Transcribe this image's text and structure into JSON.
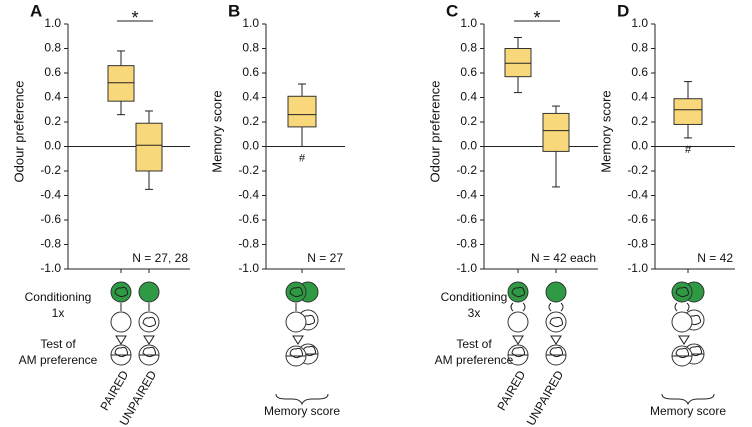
{
  "chart_data": [
    {
      "type": "box",
      "panel": "A",
      "ylabel": "Odour preference",
      "categories": [
        "PAIRED",
        "UNPAIRED"
      ],
      "boxes": [
        {
          "whislo": 0.26,
          "q1": 0.37,
          "med": 0.52,
          "q3": 0.66,
          "whishi": 0.78
        },
        {
          "whislo": -0.35,
          "q1": -0.2,
          "med": 0.01,
          "q3": 0.19,
          "whishi": 0.29
        }
      ],
      "color": "#f8d87a",
      "ylim": [
        -1,
        1
      ],
      "yticks": [
        {
          "value": -1,
          "label": "-1.0"
        },
        -0.8,
        -0.6,
        -0.4,
        -0.2,
        {
          "value": 0,
          "label": "0.0"
        },
        0.2,
        0.4,
        0.6,
        0.8,
        {
          "value": 1,
          "label": "1.0"
        }
      ],
      "significance": "*",
      "n_label": "N = 27, 28",
      "protocol": {
        "conditioning": "Conditioning",
        "repeats": "1x",
        "test": [
          "Test of",
          "AM preference"
        ]
      }
    },
    {
      "type": "box",
      "panel": "B",
      "ylabel": "Memory score",
      "boxes": [
        {
          "whislo": 0.0,
          "q1": 0.16,
          "med": 0.26,
          "q3": 0.41,
          "whishi": 0.51
        }
      ],
      "color": "#f8d87a",
      "ylim": [
        -1,
        1
      ],
      "yticks": [
        {
          "value": -1,
          "label": "-1.0"
        },
        -0.8,
        -0.6,
        -0.4,
        -0.2,
        {
          "value": 0,
          "label": "0.0"
        },
        0.2,
        0.4,
        0.6,
        0.8,
        {
          "value": 1,
          "label": "1.0"
        }
      ],
      "marker": "#",
      "n_label": "N = 27",
      "score_label": "Memory score"
    },
    {
      "type": "box",
      "panel": "C",
      "ylabel": "Odour preference",
      "categories": [
        "PAIRED",
        "UNPAIRED"
      ],
      "boxes": [
        {
          "whislo": 0.44,
          "q1": 0.57,
          "med": 0.68,
          "q3": 0.8,
          "whishi": 0.89
        },
        {
          "whislo": -0.33,
          "q1": -0.04,
          "med": 0.13,
          "q3": 0.27,
          "whishi": 0.33
        }
      ],
      "color": "#f8d87a",
      "ylim": [
        -1,
        1
      ],
      "yticks": [
        {
          "value": -1,
          "label": "-1.0"
        },
        -0.8,
        -0.6,
        -0.4,
        -0.2,
        {
          "value": 0,
          "label": "0.0"
        },
        0.2,
        0.4,
        0.6,
        0.8,
        {
          "value": 1,
          "label": "1.0"
        }
      ],
      "significance": "*",
      "n_label": "N = 42 each",
      "protocol": {
        "conditioning": "Conditioning",
        "repeats": "3x",
        "test": [
          "Test of",
          "AM preference"
        ]
      }
    },
    {
      "type": "box",
      "panel": "D",
      "ylabel": "Memory score",
      "boxes": [
        {
          "whislo": 0.07,
          "q1": 0.18,
          "med": 0.3,
          "q3": 0.39,
          "whishi": 0.53
        }
      ],
      "color": "#f8d87a",
      "ylim": [
        -1,
        1
      ],
      "yticks": [
        {
          "value": -1,
          "label": "-1.0"
        },
        -0.8,
        -0.6,
        -0.4,
        -0.2,
        {
          "value": 0,
          "label": "0.0"
        },
        0.2,
        0.4,
        0.6,
        0.8,
        {
          "value": 1,
          "label": "1.0"
        }
      ],
      "marker": "#",
      "n_label": "N = 42",
      "score_label": "Memory score"
    }
  ]
}
